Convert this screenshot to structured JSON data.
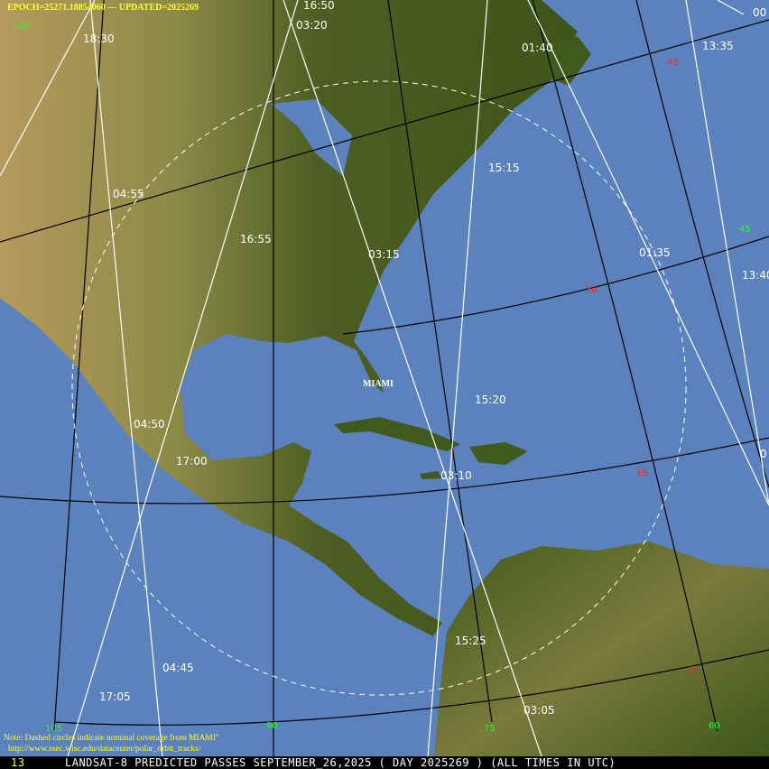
{
  "header": {
    "epoch_line": "EPOCH=25271.18854060 --- UPDATED=2025269"
  },
  "station": {
    "name": "MIAMI"
  },
  "note": {
    "line1": "Note: Dashed circles indicate nominal coverage from MIAMI\"",
    "line2": "http://www.ssec.wisc.edu/datacenter/polar_orbit_tracks/"
  },
  "footer": {
    "number": "13",
    "title": "LANDSAT-8 PREDICTED PASSES SEPTEMBER_26,2025 ( DAY 2025269 ) (ALL TIMES IN UTC)"
  },
  "pass_times": [
    "16:50",
    "03:20",
    "18:30",
    "01:40",
    "13:35",
    "00",
    "15:15",
    "04:55",
    "16:55",
    "03:15",
    "01:35",
    "13:40",
    "15:20",
    "04:50",
    "17:00",
    "03:10",
    "15:25",
    "04:45",
    "17:05",
    "03:05",
    "0"
  ],
  "latitude_labels": [
    "45",
    "30",
    "15",
    "0"
  ],
  "longitude_labels": [
    "120",
    "105",
    "90",
    "75",
    "60",
    "45"
  ],
  "colors": {
    "ocean": "#5b82bd",
    "track": "#ffffff",
    "latitude_label": "#ff2020",
    "longitude_label": "#20ff20",
    "header_text": "#ffff30"
  }
}
